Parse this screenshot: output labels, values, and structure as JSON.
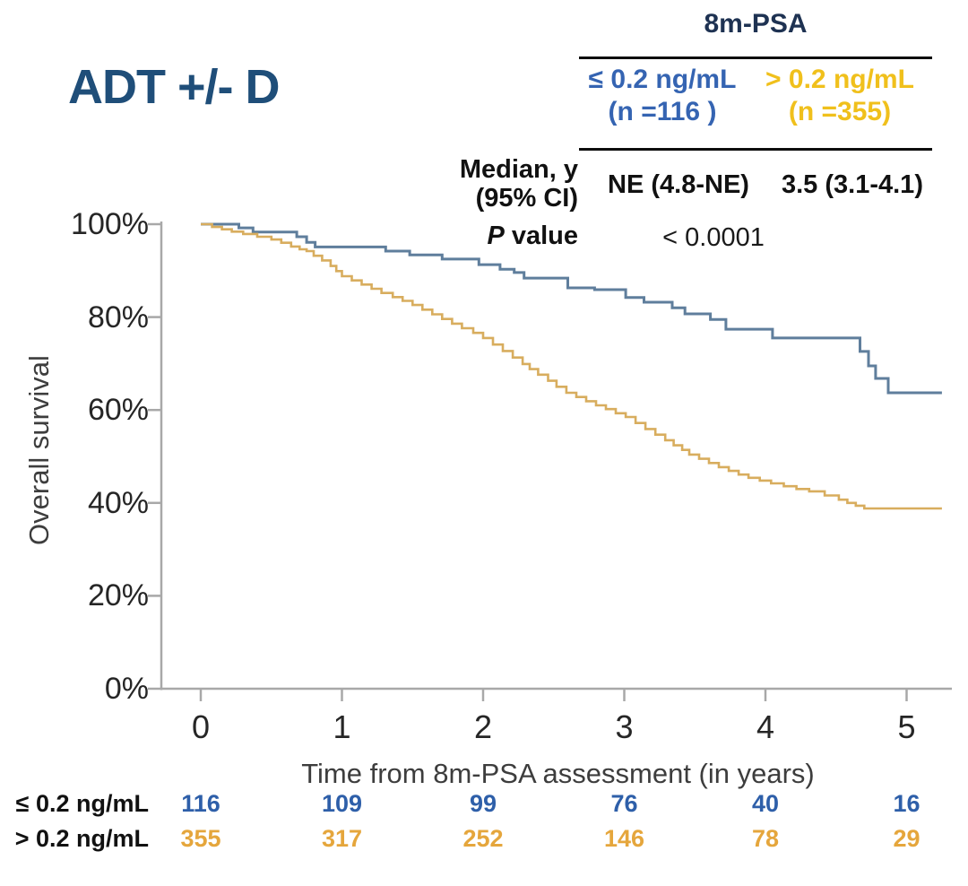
{
  "title": "ADT +/- D",
  "colors": {
    "title_navy": "#1f4e79",
    "header_navy": "#1e3252",
    "psa_low_blue": "#3564b2",
    "psa_high_yellow": "#f0c01c",
    "curve_blue": "#5f7e9c",
    "curve_orange": "#d8ad5e",
    "risk_blue": "#2e5fa9",
    "risk_orange": "#e5a63c",
    "axis_gray": "#a8a8a8"
  },
  "stats_table": {
    "header": "8m-PSA",
    "columns": [
      {
        "line1": "≤ 0.2 ng/mL",
        "line2": "(n =116 )",
        "color": "#3564b2"
      },
      {
        "line1": "> 0.2 ng/mL",
        "line2": "(n =355)",
        "color": "#f0c01c"
      }
    ],
    "median_row": {
      "label_line1": "Median, y",
      "label_line2": "(95% CI)",
      "values": [
        "NE (4.8-NE)",
        "3.5 (3.1-4.1)"
      ]
    },
    "p_row": {
      "label_italic": "P",
      "label_rest": " value",
      "value": "< 0.0001"
    }
  },
  "chart_data": {
    "type": "line",
    "subtype": "kaplan-meier-step",
    "title": "ADT +/- D",
    "xlabel": "Time from 8m-PSA assessment (in years)",
    "ylabel": "Overall survival",
    "xlim": [
      0,
      5.35
    ],
    "ylim": [
      0,
      100
    ],
    "grid": false,
    "legend_position": "top-right-table",
    "xticks": [
      0,
      1,
      2,
      3,
      4,
      5
    ],
    "yticks": [
      0,
      20,
      40,
      60,
      80,
      100
    ],
    "ytick_labels": [
      "0%",
      "20%",
      "40%",
      "60%",
      "80%",
      "100%"
    ],
    "curve_end_x": 5.25,
    "series": [
      {
        "name": "≤ 0.2 ng/mL",
        "color": "#5f7e9c",
        "width": 3,
        "steps": [
          [
            0,
            100
          ],
          [
            0.27,
            99.2
          ],
          [
            0.37,
            98.3
          ],
          [
            0.68,
            97.3
          ],
          [
            0.75,
            96.1
          ],
          [
            0.81,
            95.1
          ],
          [
            1.31,
            94.2
          ],
          [
            1.48,
            93.4
          ],
          [
            1.71,
            92.5
          ],
          [
            1.97,
            91.3
          ],
          [
            2.12,
            90.3
          ],
          [
            2.22,
            89.6
          ],
          [
            2.29,
            88.4
          ],
          [
            2.6,
            86.3
          ],
          [
            2.79,
            85.9
          ],
          [
            3.01,
            84.2
          ],
          [
            3.14,
            83.2
          ],
          [
            3.34,
            82.0
          ],
          [
            3.43,
            80.7
          ],
          [
            3.61,
            79.5
          ],
          [
            3.72,
            77.4
          ],
          [
            4.05,
            75.5
          ],
          [
            4.67,
            72.6
          ],
          [
            4.73,
            69.5
          ],
          [
            4.78,
            66.8
          ],
          [
            4.87,
            63.7
          ]
        ]
      },
      {
        "name": "> 0.2 ng/mL",
        "color": "#d8ad5e",
        "width": 2.6,
        "steps": [
          [
            0,
            100
          ],
          [
            0.08,
            99.4
          ],
          [
            0.15,
            98.9
          ],
          [
            0.22,
            98.4
          ],
          [
            0.3,
            97.9
          ],
          [
            0.4,
            97.3
          ],
          [
            0.5,
            96.7
          ],
          [
            0.57,
            96.0
          ],
          [
            0.64,
            95.2
          ],
          [
            0.7,
            94.6
          ],
          [
            0.75,
            94.2
          ],
          [
            0.8,
            93.2
          ],
          [
            0.86,
            92.2
          ],
          [
            0.92,
            91.0
          ],
          [
            0.96,
            89.9
          ],
          [
            1.0,
            88.8
          ],
          [
            1.07,
            87.9
          ],
          [
            1.14,
            87.0
          ],
          [
            1.21,
            86.1
          ],
          [
            1.28,
            85.2
          ],
          [
            1.36,
            84.3
          ],
          [
            1.43,
            83.5
          ],
          [
            1.5,
            82.6
          ],
          [
            1.57,
            81.6
          ],
          [
            1.64,
            80.6
          ],
          [
            1.71,
            79.6
          ],
          [
            1.78,
            78.6
          ],
          [
            1.85,
            77.6
          ],
          [
            1.93,
            76.6
          ],
          [
            2.0,
            75.5
          ],
          [
            2.07,
            74.1
          ],
          [
            2.14,
            72.7
          ],
          [
            2.21,
            71.3
          ],
          [
            2.28,
            69.9
          ],
          [
            2.33,
            68.8
          ],
          [
            2.39,
            67.6
          ],
          [
            2.46,
            66.3
          ],
          [
            2.52,
            65.0
          ],
          [
            2.59,
            63.7
          ],
          [
            2.66,
            62.8
          ],
          [
            2.73,
            61.9
          ],
          [
            2.8,
            61.0
          ],
          [
            2.87,
            60.2
          ],
          [
            2.94,
            59.3
          ],
          [
            3.01,
            58.5
          ],
          [
            3.08,
            57.2
          ],
          [
            3.15,
            55.9
          ],
          [
            3.22,
            54.7
          ],
          [
            3.29,
            53.5
          ],
          [
            3.35,
            52.4
          ],
          [
            3.41,
            51.4
          ],
          [
            3.46,
            50.4
          ],
          [
            3.53,
            49.5
          ],
          [
            3.6,
            48.6
          ],
          [
            3.67,
            47.7
          ],
          [
            3.74,
            46.9
          ],
          [
            3.81,
            46.1
          ],
          [
            3.88,
            45.4
          ],
          [
            3.96,
            44.8
          ],
          [
            4.04,
            44.2
          ],
          [
            4.13,
            43.6
          ],
          [
            4.22,
            43.0
          ],
          [
            4.31,
            42.5
          ],
          [
            4.42,
            41.6
          ],
          [
            4.52,
            40.7
          ],
          [
            4.58,
            40.0
          ],
          [
            4.64,
            39.4
          ],
          [
            4.7,
            38.8
          ]
        ]
      }
    ],
    "risk_table": {
      "rows": [
        {
          "label": "≤ 0.2 ng/mL",
          "color": "#2e5fa9",
          "values": [
            116,
            109,
            99,
            76,
            40,
            16
          ]
        },
        {
          "label": "> 0.2 ng/mL",
          "color": "#e5a63c",
          "values": [
            355,
            317,
            252,
            146,
            78,
            29
          ]
        }
      ]
    }
  }
}
